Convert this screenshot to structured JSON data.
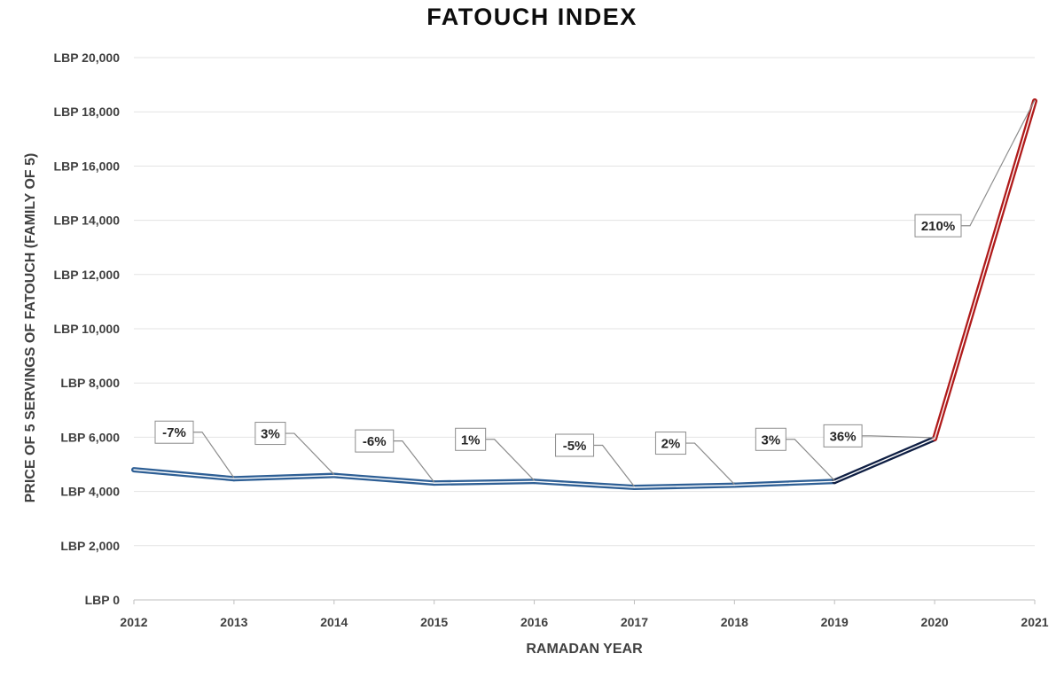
{
  "chart_data": {
    "type": "line",
    "title": "FATOUCH INDEX",
    "xlabel": "RAMADAN YEAR",
    "ylabel": "PRICE OF 5 SERVINGS OF FATOUCH (FAMILY OF 5)",
    "x": [
      "2012",
      "2013",
      "2014",
      "2015",
      "2016",
      "2017",
      "2018",
      "2019",
      "2020",
      "2021"
    ],
    "values": [
      4800,
      4470,
      4590,
      4310,
      4370,
      4150,
      4230,
      4370,
      5950,
      18400
    ],
    "ylim": [
      0,
      20000
    ],
    "y_ticks": [
      {
        "value": 0,
        "label": "LBP 0"
      },
      {
        "value": 2000,
        "label": "LBP 2,000"
      },
      {
        "value": 4000,
        "label": "LBP 4,000"
      },
      {
        "value": 6000,
        "label": "LBP 6,000"
      },
      {
        "value": 8000,
        "label": "LBP 8,000"
      },
      {
        "value": 10000,
        "label": "LBP 10,000"
      },
      {
        "value": 12000,
        "label": "LBP 12,000"
      },
      {
        "value": 14000,
        "label": "LBP 14,000"
      },
      {
        "value": 16000,
        "label": "LBP 16,000"
      },
      {
        "value": 18000,
        "label": "LBP 18,000"
      },
      {
        "value": 20000,
        "label": "LBP 20,000"
      }
    ],
    "grid": true,
    "segment_colors": {
      "2012-2019": "#2e5f95",
      "2019-2020": "#0f1f44",
      "2020-2021": "#b01b1b"
    },
    "annotations": [
      {
        "text": "-7%",
        "to": "2013"
      },
      {
        "text": "3%",
        "to": "2014"
      },
      {
        "text": "-6%",
        "to": "2015"
      },
      {
        "text": "1%",
        "to": "2016"
      },
      {
        "text": "-5%",
        "to": "2017"
      },
      {
        "text": "2%",
        "to": "2018"
      },
      {
        "text": "3%",
        "to": "2019"
      },
      {
        "text": "36%",
        "to": "2020"
      },
      {
        "text": "210%",
        "to": "2021"
      }
    ]
  }
}
